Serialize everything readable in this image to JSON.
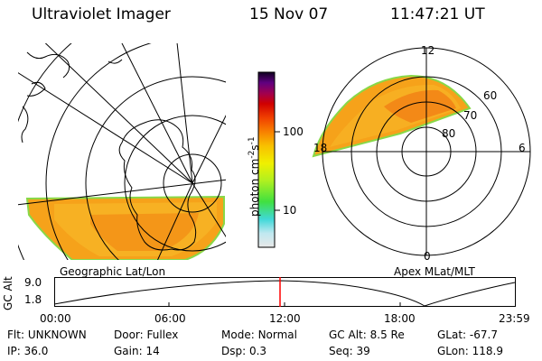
{
  "header": {
    "title": "Ultraviolet Imager",
    "date": "15 Nov 07",
    "time": "11:47:21 UT"
  },
  "geo_panel": {
    "label": "Geographic Lat/Lon"
  },
  "apex_panel": {
    "label": "Apex MLat/MLT",
    "mlt_labels": [
      "12",
      "18",
      "6",
      "0"
    ],
    "mlat_labels": [
      "60",
      "70",
      "80"
    ]
  },
  "colorbar": {
    "unit_label": "photon cm",
    "unit_sup1": "-2",
    "unit_mid": "s",
    "unit_sup2": "-1",
    "ticks": [
      "100",
      "10"
    ],
    "colors": [
      "#e8e8e8",
      "#c0e8f0",
      "#40d8d8",
      "#60e040",
      "#c0f020",
      "#f0f000",
      "#f8c000",
      "#f88000",
      "#f04000",
      "#d00000",
      "#a00050",
      "#600080",
      "#200040"
    ]
  },
  "altitude_plot": {
    "ylabel": "GC Alt",
    "yticks": [
      "9.0",
      "1.8"
    ],
    "xticks": [
      "00:00",
      "06:00",
      "12:00",
      "18:00",
      "23:59"
    ],
    "marker_color": "#ff0000"
  },
  "info": {
    "row1": [
      {
        "key": "Flt:",
        "value": "UNKNOWN"
      },
      {
        "key": "Door:",
        "value": "Fullex"
      },
      {
        "key": "Mode:",
        "value": "Normal"
      },
      {
        "key": "GC Alt:",
        "value": "8.5 Re"
      },
      {
        "key": "GLat:",
        "value": "-67.7"
      }
    ],
    "row2": [
      {
        "key": "IP:",
        "value": "36.0"
      },
      {
        "key": "Gain:",
        "value": "14"
      },
      {
        "key": "Dsp:",
        "value": "0.3"
      },
      {
        "key": "Seq:",
        "value": "39"
      },
      {
        "key": "GLon:",
        "value": "118.9"
      }
    ]
  }
}
